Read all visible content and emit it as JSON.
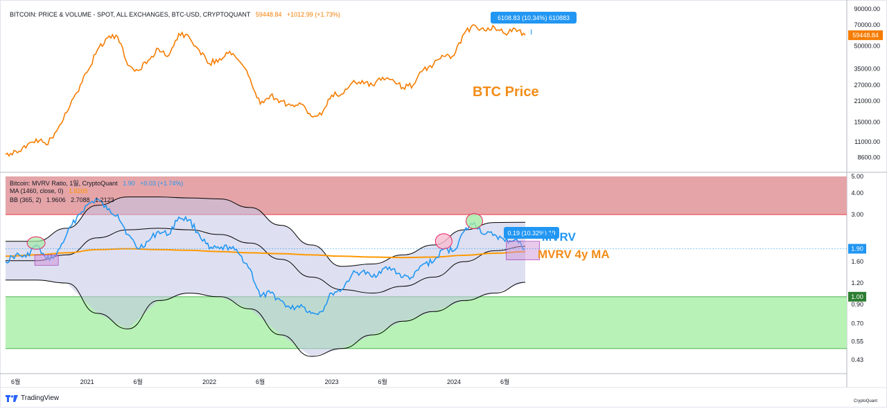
{
  "top_legend": {
    "title": "BITCOIN: PRICE & VOLUME - SPOT, ALL EXCHANGES, BTC-USD, CRYPTOQUANT",
    "value": "59448.84",
    "change": "+1012.99 (+1.73%)"
  },
  "bottom_legend": {
    "line1_title": "Bitcoin: MVRV Ratio, 1일, CryptoQuant",
    "line1_value": "1.90",
    "line1_change": "+0.03 (+1.74%)",
    "line2_title": "MA (1460, close, 0)",
    "line2_value": "1.8265",
    "line3_title": "BB (365, 2)",
    "line3_v1": "1.9606",
    "line3_v2": "2.7088",
    "line3_v3": "1.2123"
  },
  "annotations": {
    "btc_price_label": "BTC Price",
    "mvrv_label": "MVRV",
    "mvrv_ma_label": "MVRV 4y MA",
    "price_measure": "6108.83 (10.34%) 610883",
    "mvrv_measure": "0.19 (10.32%) 19"
  },
  "colors": {
    "price_line": "#f57c00",
    "mvrv_line": "#2196f3",
    "ma_line": "#ff9800",
    "bb_line": "#000000",
    "red_zone": "#e5a5a8",
    "green_zone": "#b8f2b6",
    "band_fill": "#c3c7e6",
    "measure_box": "#2196f3",
    "price_badge": "#f57c00",
    "mvrv_badge": "#2196f3",
    "one_badge": "#2e7d32"
  },
  "branding": {
    "tradingview": "TradingView",
    "cryptoquant": "CryptoQuant"
  },
  "chart_data": [
    {
      "type": "line",
      "scale": "log",
      "series": [
        {
          "x": [
            "2020-05",
            "2020-06",
            "2020-07",
            "2020-08",
            "2020-09",
            "2020-10",
            "2020-11",
            "2020-12",
            "2021-01",
            "2021-02",
            "2021-03",
            "2021-04",
            "2021-05",
            "2021-06",
            "2021-07",
            "2021-08",
            "2021-09",
            "2021-10",
            "2021-11",
            "2021-12",
            "2022-01",
            "2022-02",
            "2022-03",
            "2022-04",
            "2022-05",
            "2022-06",
            "2022-07",
            "2022-08",
            "2022-09",
            "2022-10",
            "2022-11",
            "2022-12",
            "2023-01",
            "2023-02",
            "2023-03",
            "2023-04",
            "2023-05",
            "2023-06",
            "2023-07",
            "2023-08",
            "2023-09",
            "2023-10",
            "2023-11",
            "2023-12",
            "2024-01",
            "2024-02",
            "2024-03",
            "2024-04",
            "2024-05",
            "2024-06",
            "2024-07",
            "2024-08"
          ],
          "values": [
            9000,
            9500,
            10000,
            11500,
            10500,
            13000,
            17500,
            24000,
            33000,
            47000,
            57000,
            58000,
            37000,
            34000,
            40000,
            48000,
            43000,
            61000,
            58000,
            47000,
            38000,
            41000,
            46000,
            39000,
            30000,
            20000,
            23000,
            21000,
            19500,
            20000,
            16500,
            16800,
            23000,
            23500,
            28000,
            29000,
            27000,
            30500,
            29500,
            26000,
            27000,
            34500,
            37500,
            42500,
            43000,
            61000,
            70000,
            64000,
            67000,
            61000,
            66000,
            59448.84
          ]
        }
      ],
      "y_ticks": [
        "90000.00",
        "70000.00",
        "50000.00",
        "35000.00",
        "27000.00",
        "21000.00",
        "15000.00",
        "11000.00",
        "8600.00"
      ],
      "last_value_label": "59448.84"
    },
    {
      "type": "line",
      "scale": "log",
      "series": [
        {
          "x": [
            "2020-05",
            "2020-06",
            "2020-07",
            "2020-08",
            "2020-09",
            "2020-10",
            "2020-11",
            "2020-12",
            "2021-01",
            "2021-02",
            "2021-03",
            "2021-04",
            "2021-05",
            "2021-06",
            "2021-07",
            "2021-08",
            "2021-09",
            "2021-10",
            "2021-11",
            "2021-12",
            "2022-01",
            "2022-02",
            "2022-03",
            "2022-04",
            "2022-05",
            "2022-06",
            "2022-07",
            "2022-08",
            "2022-09",
            "2022-10",
            "2022-11",
            "2022-12",
            "2023-01",
            "2023-02",
            "2023-03",
            "2023-04",
            "2023-05",
            "2023-06",
            "2023-07",
            "2023-08",
            "2023-09",
            "2023-10",
            "2023-11",
            "2023-12",
            "2024-01",
            "2024-02",
            "2024-03",
            "2024-04",
            "2024-05",
            "2024-06",
            "2024-07",
            "2024-08"
          ],
          "values": [
            1.6,
            1.75,
            1.7,
            2.0,
            1.65,
            1.75,
            2.3,
            2.9,
            3.4,
            3.7,
            3.2,
            3.0,
            2.3,
            1.9,
            2.1,
            2.4,
            2.3,
            2.9,
            2.8,
            2.3,
            1.9,
            1.9,
            1.95,
            1.75,
            1.45,
            1.0,
            1.05,
            0.95,
            0.85,
            0.9,
            0.8,
            0.82,
            1.05,
            1.1,
            1.35,
            1.4,
            1.3,
            1.45,
            1.45,
            1.3,
            1.3,
            1.55,
            1.6,
            1.9,
            1.85,
            2.4,
            2.7,
            2.3,
            2.3,
            2.1,
            2.15,
            1.9
          ]
        },
        {
          "x": [
            "2020-05",
            "2020-08",
            "2020-11",
            "2021-02",
            "2021-05",
            "2021-08",
            "2021-11",
            "2022-02",
            "2022-05",
            "2022-08",
            "2022-11",
            "2023-02",
            "2023-05",
            "2023-08",
            "2023-11",
            "2024-02",
            "2024-05",
            "2024-08"
          ],
          "values": [
            1.72,
            1.75,
            1.8,
            1.88,
            1.9,
            1.88,
            1.86,
            1.83,
            1.8,
            1.78,
            1.75,
            1.72,
            1.7,
            1.69,
            1.7,
            1.74,
            1.79,
            1.8265
          ]
        },
        {
          "x": [
            "2020-05",
            "2020-08",
            "2020-11",
            "2021-02",
            "2021-05",
            "2021-08",
            "2021-11",
            "2022-02",
            "2022-05",
            "2022-08",
            "2022-11",
            "2023-02",
            "2023-05",
            "2023-08",
            "2023-11",
            "2024-02",
            "2024-05",
            "2024-08"
          ],
          "values": [
            1.62,
            1.62,
            1.75,
            2.2,
            2.45,
            2.5,
            2.45,
            2.3,
            2.05,
            1.65,
            1.3,
            1.1,
            1.05,
            1.15,
            1.3,
            1.6,
            1.85,
            1.9606
          ]
        },
        {
          "x": [
            "2020-05",
            "2020-08",
            "2020-11",
            "2021-02",
            "2021-05",
            "2021-08",
            "2021-11",
            "2022-02",
            "2022-05",
            "2022-08",
            "2022-11",
            "2023-02",
            "2023-05",
            "2023-08",
            "2023-11",
            "2024-02",
            "2024-05",
            "2024-08"
          ],
          "values": [
            2.1,
            2.1,
            2.5,
            3.4,
            3.8,
            3.8,
            3.75,
            3.7,
            3.3,
            2.6,
            2.0,
            1.5,
            1.55,
            1.75,
            2.0,
            2.45,
            2.7,
            2.7088
          ]
        },
        {
          "x": [
            "2020-05",
            "2020-08",
            "2020-11",
            "2021-02",
            "2021-05",
            "2021-08",
            "2021-11",
            "2022-02",
            "2022-05",
            "2022-08",
            "2022-11",
            "2023-02",
            "2023-05",
            "2023-08",
            "2023-11",
            "2024-02",
            "2024-05",
            "2024-08"
          ],
          "values": [
            1.25,
            1.25,
            1.2,
            0.8,
            0.65,
            0.95,
            1.05,
            1.0,
            0.85,
            0.6,
            0.45,
            0.5,
            0.6,
            0.72,
            0.82,
            0.95,
            1.05,
            1.2123
          ]
        }
      ],
      "y_ticks": [
        "5.00",
        "4.00",
        "3.00",
        "1.90",
        "1.60",
        "1.20",
        "1.00",
        "0.90",
        "0.70",
        "0.55",
        "0.43"
      ],
      "zones": {
        "red": [
          3.0,
          5.0
        ],
        "green": [
          0.5,
          1.0
        ]
      },
      "last_value_label": "1.90",
      "one_label": "1.00"
    }
  ],
  "x_axis": {
    "ticks": [
      {
        "date": "2020-06",
        "label": "6월"
      },
      {
        "date": "2021-01",
        "label": "2021"
      },
      {
        "date": "2021-06",
        "label": "6월"
      },
      {
        "date": "2022-01",
        "label": "2022"
      },
      {
        "date": "2022-06",
        "label": "6월"
      },
      {
        "date": "2023-01",
        "label": "2023"
      },
      {
        "date": "2023-06",
        "label": "6월"
      },
      {
        "date": "2024-01",
        "label": "2024"
      },
      {
        "date": "2024-06",
        "label": "6월"
      }
    ]
  }
}
